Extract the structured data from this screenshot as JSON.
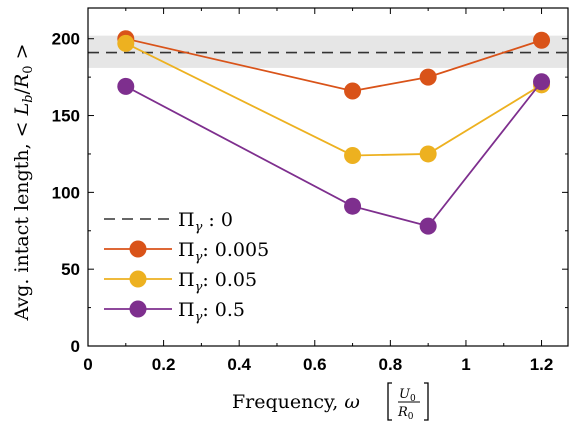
{
  "chart_data": {
    "type": "line",
    "xlabel": "Frequency, ω [U₀/R₀]",
    "ylabel": "Avg. intact length, < L_b/R₀ >",
    "xlim": [
      0,
      1.27
    ],
    "ylim": [
      0,
      220
    ],
    "xticks": [
      0,
      0.2,
      0.4,
      0.6,
      0.8,
      1,
      1.2
    ],
    "yticks": [
      0,
      50,
      100,
      150,
      200
    ],
    "xtick_labels": [
      "0",
      "0.2",
      "0.4",
      "0.6",
      "0.8",
      "1",
      "1.2"
    ],
    "ytick_labels": [
      "0",
      "50",
      "100",
      "150",
      "200"
    ],
    "legend_position": "bottom-left",
    "reference": {
      "label": "Π_γ : 0",
      "value": 191,
      "band": [
        181,
        202
      ],
      "color": "#333333",
      "band_color": "#e6e6e6"
    },
    "series": [
      {
        "name": "Π_γ: 0.005",
        "color": "#d95319",
        "x": [
          0.1,
          0.7,
          0.9,
          1.2
        ],
        "values": [
          200,
          166,
          175,
          199
        ]
      },
      {
        "name": "Π_γ: 0.05",
        "color": "#edb120",
        "x": [
          0.1,
          0.7,
          0.9,
          1.2
        ],
        "values": [
          197,
          124,
          125,
          170
        ]
      },
      {
        "name": "Π_γ: 0.5",
        "color": "#7e2f8e",
        "x": [
          0.1,
          0.7,
          0.9,
          1.2
        ],
        "values": [
          169,
          91,
          78,
          172
        ]
      }
    ]
  }
}
